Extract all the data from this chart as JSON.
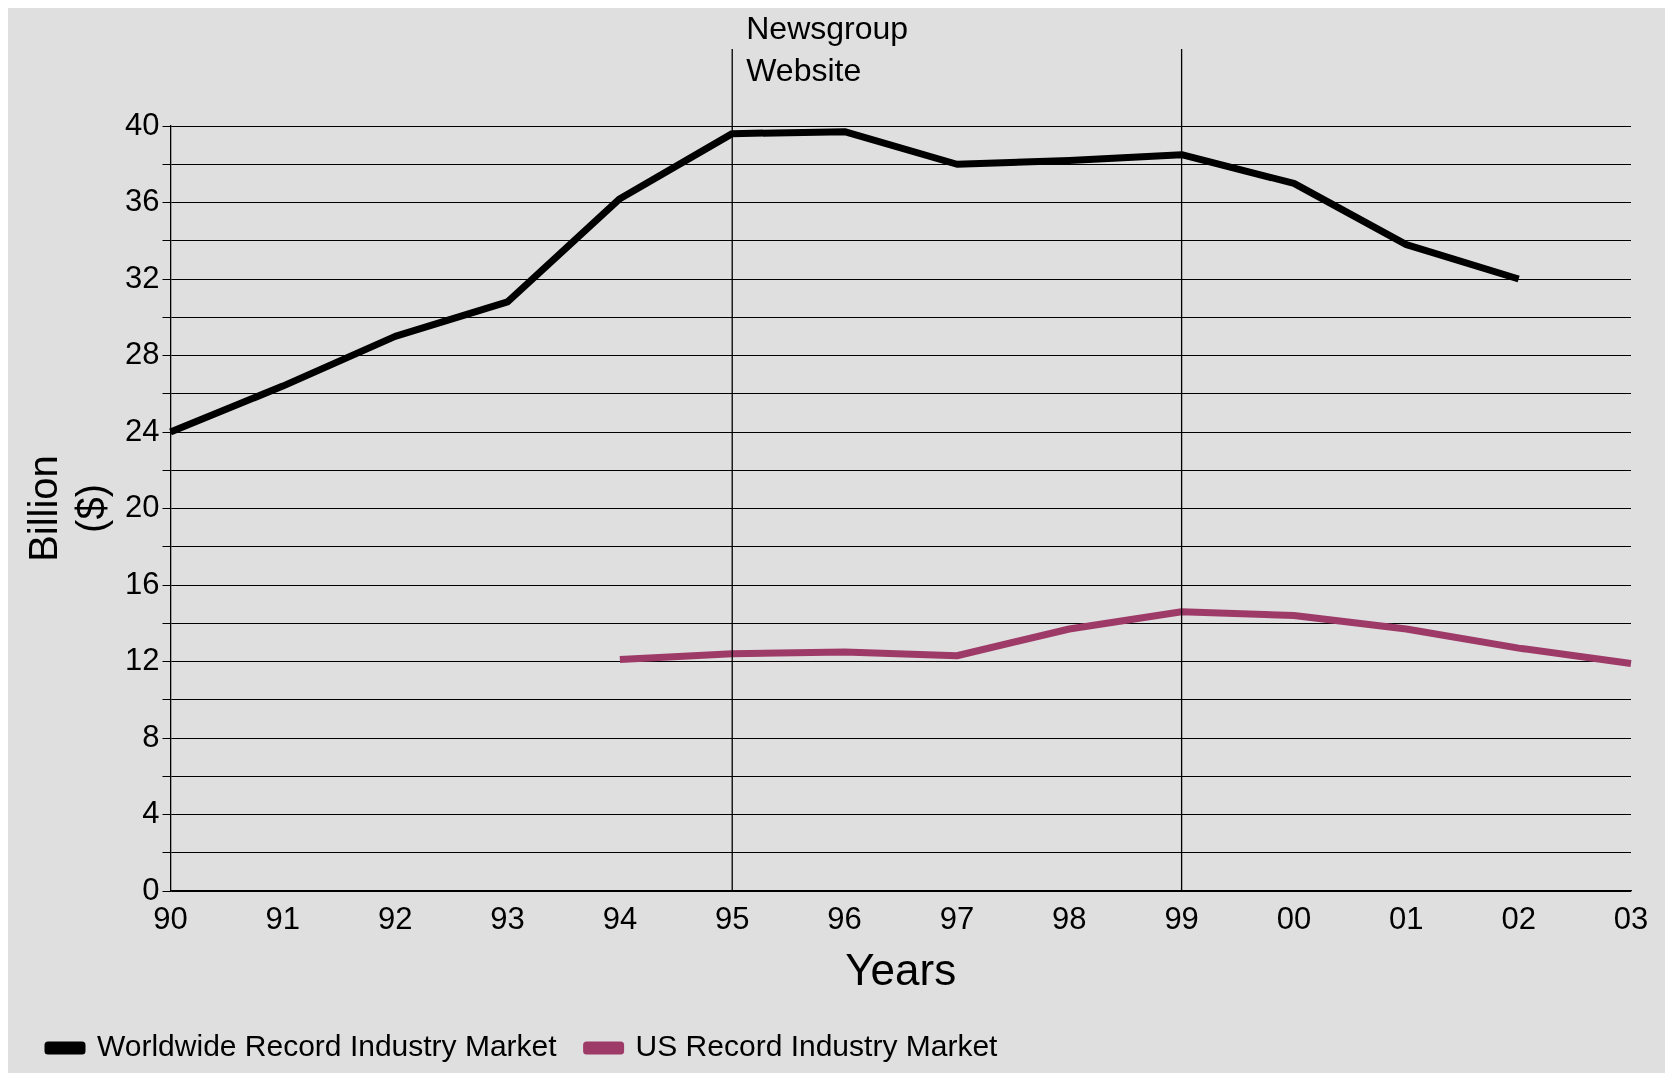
{
  "chart_data": {
    "type": "line",
    "xlabel": "Years",
    "ylabel": "Billion ($)",
    "categories": [
      "90",
      "91",
      "92",
      "93",
      "94",
      "95",
      "96",
      "97",
      "98",
      "99",
      "00",
      "01",
      "02",
      "03"
    ],
    "series": [
      {
        "name": "Worldwide Record Industry Market",
        "color": "#000000",
        "values": [
          24,
          26.4,
          29,
          30.8,
          36.2,
          39.6,
          39.7,
          38,
          38.2,
          38.5,
          37,
          33.8,
          32,
          null
        ]
      },
      {
        "name": "US Record Industry Market",
        "color": "#9e3a68",
        "values": [
          null,
          null,
          null,
          null,
          12.1,
          12.4,
          12.5,
          12.3,
          13.7,
          14.6,
          14.4,
          13.7,
          12.7,
          11.9
        ]
      }
    ],
    "ylim": [
      0,
      40
    ],
    "yticks": [
      0,
      {
        "value": 2,
        "label": null
      },
      4,
      {
        "value": 6,
        "label": null
      },
      8,
      {
        "value": 10,
        "label": null
      },
      12,
      {
        "value": 14,
        "label": null
      },
      16,
      {
        "value": 18,
        "label": null
      },
      20,
      {
        "value": 22,
        "label": null
      },
      24,
      {
        "value": 26,
        "label": null
      },
      28,
      {
        "value": 30,
        "label": null
      },
      32,
      {
        "value": 34,
        "label": null
      },
      36,
      {
        "value": 38,
        "label": null
      },
      40
    ],
    "ref_lines": [
      {
        "axis": "x",
        "value": "95",
        "label": "Newsgroup Website"
      },
      {
        "axis": "x",
        "value": "99"
      }
    ],
    "grid": "y",
    "legend": "bottom left",
    "marker": "none",
    "line_style": "solid"
  }
}
